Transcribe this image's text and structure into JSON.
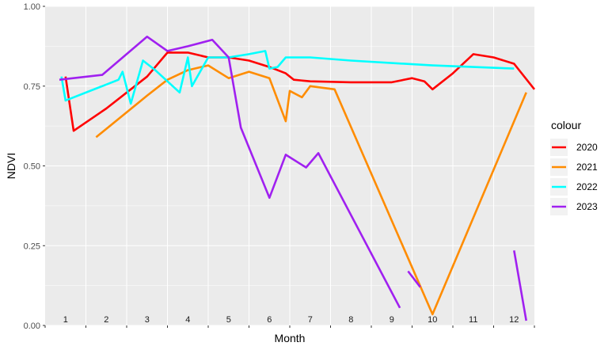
{
  "chart_data": {
    "type": "line",
    "title": "",
    "xlabel": "Month",
    "ylabel": "NDVI",
    "ylim": [
      0,
      1
    ],
    "xlim": [
      0.5,
      12.5
    ],
    "y_ticks": [
      "0.00",
      "0.25",
      "0.50",
      "0.75",
      "1.00"
    ],
    "month_labels": [
      "1",
      "2",
      "3",
      "4",
      "5",
      "6",
      "7",
      "8",
      "9",
      "10",
      "11",
      "12"
    ],
    "grid": true,
    "legend": {
      "title": "colour",
      "position": "right"
    },
    "series": [
      {
        "name": "2020",
        "color": "#ff0000",
        "segments": [
          [
            [
              1.0,
              0.78
            ],
            [
              1.2,
              0.61
            ],
            [
              2.0,
              0.68
            ],
            [
              3.0,
              0.78
            ],
            [
              3.5,
              0.855
            ],
            [
              4.0,
              0.855
            ],
            [
              4.5,
              0.84
            ],
            [
              5.0,
              0.84
            ],
            [
              5.5,
              0.83
            ],
            [
              6.0,
              0.81
            ],
            [
              6.4,
              0.79
            ],
            [
              6.6,
              0.77
            ],
            [
              7.0,
              0.765
            ],
            [
              8.0,
              0.762
            ],
            [
              9.0,
              0.762
            ],
            [
              9.5,
              0.775
            ],
            [
              9.8,
              0.765
            ],
            [
              10.0,
              0.74
            ],
            [
              10.5,
              0.79
            ],
            [
              11.0,
              0.85
            ],
            [
              11.5,
              0.84
            ],
            [
              12.0,
              0.82
            ],
            [
              12.5,
              0.74
            ]
          ]
        ]
      },
      {
        "name": "2021",
        "color": "#ff8c00",
        "segments": [
          [
            [
              1.75,
              0.59
            ],
            [
              3.0,
              0.72
            ],
            [
              3.5,
              0.77
            ],
            [
              4.0,
              0.8
            ],
            [
              4.5,
              0.815
            ],
            [
              5.0,
              0.775
            ],
            [
              5.5,
              0.795
            ],
            [
              6.0,
              0.775
            ],
            [
              6.4,
              0.64
            ],
            [
              6.5,
              0.735
            ],
            [
              6.8,
              0.715
            ],
            [
              7.0,
              0.75
            ],
            [
              7.6,
              0.74
            ],
            [
              10.0,
              0.035
            ],
            [
              12.3,
              0.73
            ]
          ]
        ]
      },
      {
        "name": "2022",
        "color": "#00ffff",
        "segments": [
          [
            [
              0.9,
              0.78
            ],
            [
              1.0,
              0.705
            ],
            [
              2.3,
              0.77
            ],
            [
              2.4,
              0.795
            ],
            [
              2.6,
              0.695
            ],
            [
              2.9,
              0.83
            ],
            [
              3.2,
              0.8
            ],
            [
              3.5,
              0.765
            ],
            [
              3.8,
              0.73
            ],
            [
              4.0,
              0.84
            ],
            [
              4.1,
              0.75
            ],
            [
              4.5,
              0.84
            ],
            [
              5.0,
              0.84
            ],
            [
              5.5,
              0.85
            ],
            [
              5.9,
              0.86
            ],
            [
              6.0,
              0.805
            ],
            [
              6.2,
              0.81
            ],
            [
              6.4,
              0.84
            ],
            [
              7.0,
              0.84
            ],
            [
              8.0,
              0.83
            ],
            [
              10.0,
              0.815
            ],
            [
              12.0,
              0.805
            ]
          ]
        ]
      },
      {
        "name": "2023",
        "color": "#a020f0",
        "segments": [
          [
            [
              0.85,
              0.77
            ],
            [
              1.9,
              0.785
            ],
            [
              3.0,
              0.905
            ],
            [
              3.5,
              0.86
            ],
            [
              4.0,
              0.875
            ],
            [
              4.6,
              0.895
            ],
            [
              5.0,
              0.84
            ],
            [
              5.3,
              0.62
            ],
            [
              6.0,
              0.4
            ],
            [
              6.4,
              0.535
            ],
            [
              6.9,
              0.495
            ],
            [
              7.2,
              0.54
            ],
            [
              9.2,
              0.055
            ]
          ],
          [
            [
              9.4,
              0.17
            ],
            [
              9.7,
              0.12
            ]
          ],
          [
            [
              12.0,
              0.235
            ],
            [
              12.3,
              0.015
            ]
          ]
        ]
      }
    ]
  }
}
